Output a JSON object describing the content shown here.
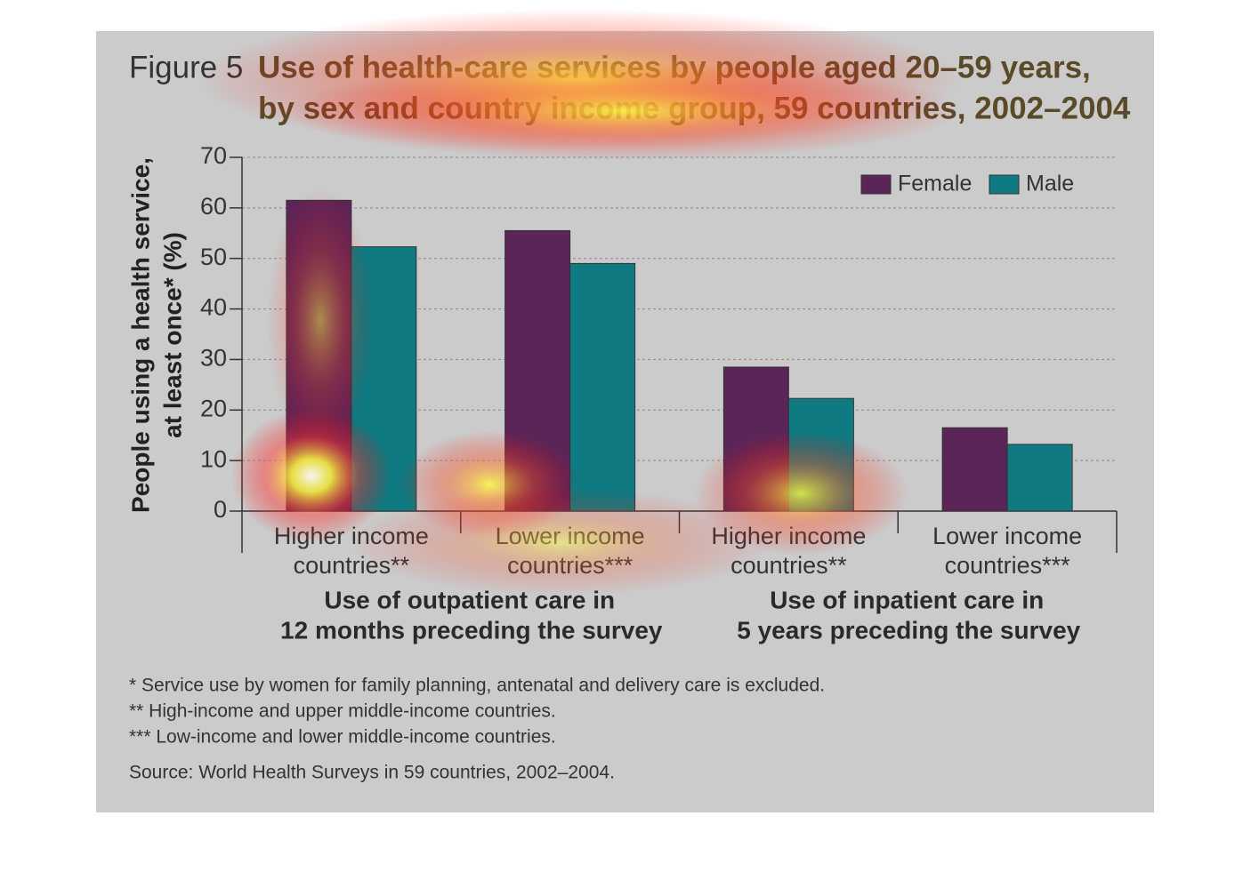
{
  "chart_data": {
    "type": "bar",
    "figure_label": "Figure 5",
    "title": [
      "Use of health-care services by people aged 20–59 years,",
      "by sex and country income group, 59 countries, 2002–2004"
    ],
    "y_label": [
      "People using a health service,",
      "at least once* (%)"
    ],
    "categories": [
      "Higher income countries**",
      "Lower income countries***",
      "Higher income countries**",
      "Lower income countries***"
    ],
    "group_labels": [
      [
        "Use of outpatient care in",
        "12 months preceding the survey"
      ],
      [
        "Use of inpatient care in",
        "5 years preceding the survey"
      ]
    ],
    "series": [
      {
        "name": "Female",
        "color": "#5c2558",
        "values": [
          61.5,
          55.5,
          28.5,
          16.5
        ]
      },
      {
        "name": "Male",
        "color": "#0f7a82",
        "values": [
          52.3,
          49,
          22.3,
          13.2
        ]
      }
    ],
    "ylim": [
      0,
      70
    ],
    "yticks": [
      0,
      10,
      20,
      30,
      40,
      50,
      60,
      70
    ],
    "grid": true,
    "legend": "upper right",
    "footnotes": [
      "* Service use by women for family planning, antenatal and delivery care is excluded.",
      "** High-income and upper middle-income countries.",
      "*** Low-income and lower middle-income countries."
    ],
    "source": "Source: World Health Surveys in 59 countries, 2002–2004."
  }
}
